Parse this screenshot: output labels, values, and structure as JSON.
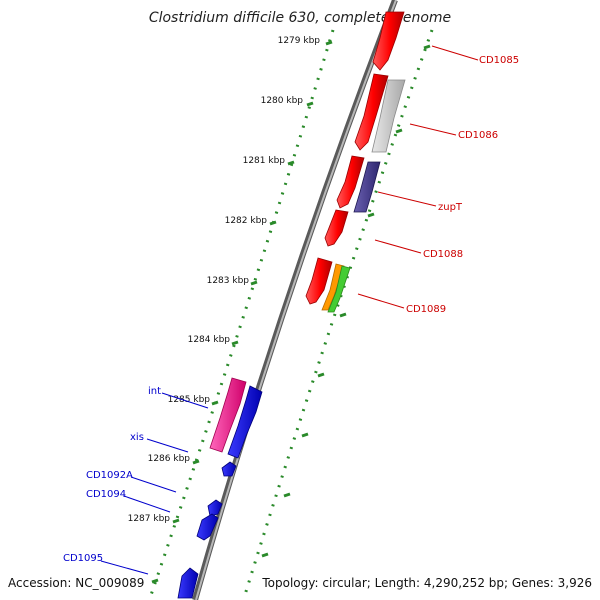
{
  "title": "Clostridium difficile 630, complete genome",
  "footer": {
    "accession": "Accession: NC_009089",
    "summary": "Topology: circular; Length: 4,290,252 bp; Genes: 3,926"
  },
  "colors": {
    "background": "#ffffff",
    "backbone": "#8a8a8a",
    "tick_dots": "#2a8a2a",
    "forward_label": "#cc0000",
    "reverse_label": "#0000cc",
    "red_gene": "#ff0000",
    "gray_gene": "#c8c8c8",
    "purple_gene": "#4a4090",
    "orange_gene": "#ff9900",
    "green_gene": "#44cc33",
    "magenta_gene": "#ff1493",
    "blue_gene": "#0000ff"
  },
  "ticks": [
    {
      "label": "1279 kbp",
      "kbp": 1279
    },
    {
      "label": "1280 kbp",
      "kbp": 1280
    },
    {
      "label": "1281 kbp",
      "kbp": 1281
    },
    {
      "label": "1282 kbp",
      "kbp": 1282
    },
    {
      "label": "1283 kbp",
      "kbp": 1283
    },
    {
      "label": "1284 kbp",
      "kbp": 1284
    },
    {
      "label": "1285 kbp",
      "kbp": 1285
    },
    {
      "label": "1286 kbp",
      "kbp": 1286
    },
    {
      "label": "1287 kbp",
      "kbp": 1287
    }
  ],
  "labels_forward": [
    {
      "name": "CD1085"
    },
    {
      "name": "CD1086"
    },
    {
      "name": "zupT"
    },
    {
      "name": "CD1088"
    },
    {
      "name": "CD1089"
    }
  ],
  "labels_reverse": [
    {
      "name": "int"
    },
    {
      "name": "xis"
    },
    {
      "name": "CD1092A"
    },
    {
      "name": "CD1094"
    },
    {
      "name": "CD1095"
    }
  ]
}
